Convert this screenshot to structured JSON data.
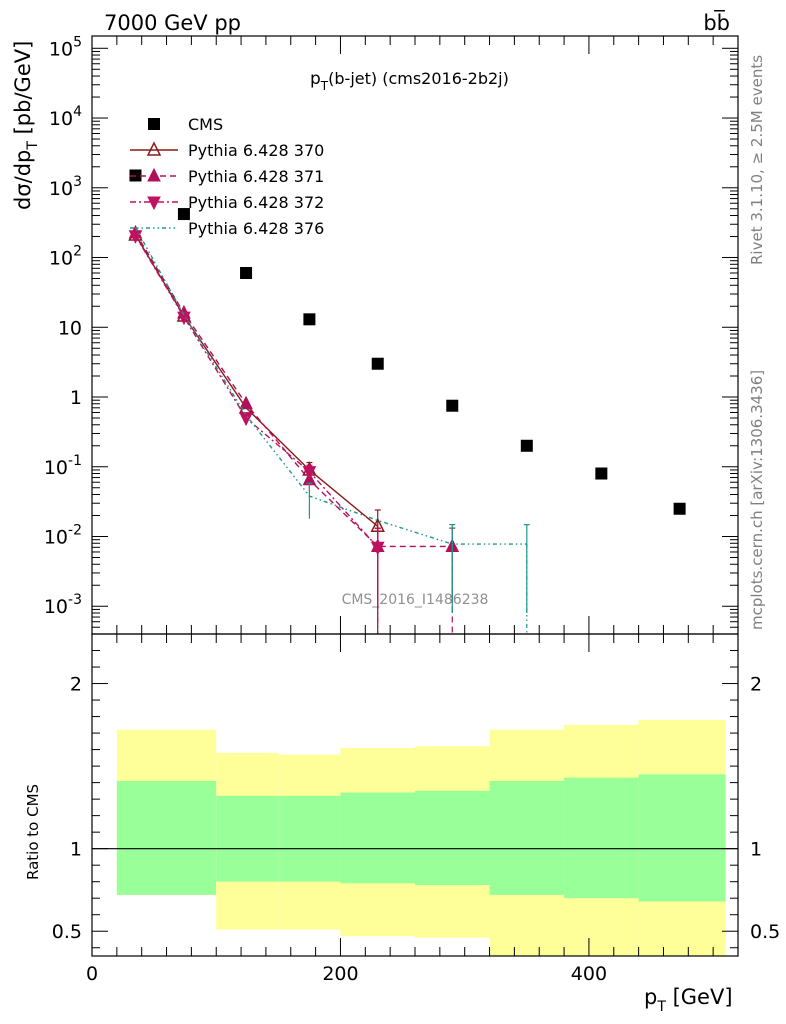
{
  "header": {
    "left": "7000 GeV pp",
    "right": "bb̅"
  },
  "side_labels": {
    "top": "Rivet 3.1.10, ≥ 2.5M events",
    "bottom": "mcplots.cern.ch [arXiv:1306.3436]"
  },
  "watermark": "CMS_2016_I1486238",
  "chart_data": [
    {
      "type": "scatter",
      "title": "p_T(b-jet) (cms2016-2b2j)",
      "title_main": "p",
      "title_sub": "T",
      "title_rest": "(b-jet) (cms2016-2b2j)",
      "ylabel": "dσ/dp_T [pb/GeV]",
      "yscale": "log",
      "xlim": [
        0,
        520
      ],
      "ylim": [
        0.0004,
        150000
      ],
      "y_ticks": [
        {
          "v": 100000,
          "label": "10^5"
        },
        {
          "v": 10000,
          "label": "10^4"
        },
        {
          "v": 1000,
          "label": "10^3"
        },
        {
          "v": 100,
          "label": "10^2"
        },
        {
          "v": 10,
          "label": "10"
        },
        {
          "v": 1,
          "label": "1"
        },
        {
          "v": 0.1,
          "label": "10^-1"
        },
        {
          "v": 0.01,
          "label": "10^-2"
        },
        {
          "v": 0.001,
          "label": "10^-3"
        }
      ],
      "legend_position": "top-left",
      "series": [
        {
          "name": "CMS",
          "color": "#000000",
          "marker": "square",
          "x": [
            35,
            74,
            124,
            175,
            230,
            290,
            350,
            410,
            473
          ],
          "y": [
            1500,
            420,
            60,
            13,
            3.0,
            0.75,
            0.2,
            0.08,
            0.025
          ]
        },
        {
          "name": "Pythia 6.428 370",
          "color": "#8b1a1a",
          "marker": "triangle-up-open",
          "line": "solid",
          "x": [
            35,
            74,
            124,
            175,
            230
          ],
          "y": [
            210,
            14.5,
            0.7,
            0.09,
            0.014
          ],
          "err": [
            0,
            0,
            0,
            0.025,
            0.01
          ]
        },
        {
          "name": "Pythia 6.428 371",
          "color": "#b0105a",
          "marker": "triangle-up",
          "line": "dashed",
          "x": [
            35,
            74,
            124,
            175,
            230,
            290
          ],
          "y": [
            225,
            16,
            0.8,
            0.065,
            0.0072,
            0.0072
          ],
          "err": [
            0,
            0,
            0,
            0.02,
            0.006,
            0.006
          ]
        },
        {
          "name": "Pythia 6.428 372",
          "color": "#c01060",
          "marker": "triangle-down",
          "line": "dashdot",
          "x": [
            35,
            74,
            124,
            175,
            230
          ],
          "y": [
            205,
            14,
            0.5,
            0.085,
            0.007
          ],
          "err": [
            0,
            0,
            0,
            0.02,
            0.006
          ]
        },
        {
          "name": "Pythia 6.428 376",
          "color": "#1a9a8a",
          "marker": "none",
          "line": "dashdotdot",
          "x": [
            35,
            74,
            124,
            175,
            230,
            290,
            350
          ],
          "y": [
            270,
            15,
            0.55,
            0.038,
            0.017,
            0.0078,
            0.0078
          ],
          "err": [
            0,
            0,
            0,
            0.02,
            0,
            0.007,
            0.007
          ]
        }
      ]
    },
    {
      "type": "area",
      "ylabel": "Ratio to CMS",
      "xlabel": "p_T [GeV]",
      "xlabel_main": "p",
      "xlabel_sub": "T",
      "xlabel_rest": " [GeV]",
      "xlim": [
        0,
        520
      ],
      "ylim": [
        0.35,
        2.3
      ],
      "x_ticks": [
        0,
        200,
        400
      ],
      "y_ticks": [
        0.5,
        1,
        2
      ],
      "reference_line": 1,
      "bins": [
        {
          "x0": 20,
          "x1": 100,
          "outer_lo": 0.72,
          "outer_hi": 1.72,
          "inner_lo": 0.72,
          "inner_hi": 1.41
        },
        {
          "x0": 100,
          "x1": 150,
          "outer_lo": 0.51,
          "outer_hi": 1.58,
          "inner_lo": 0.8,
          "inner_hi": 1.32
        },
        {
          "x0": 150,
          "x1": 200,
          "outer_lo": 0.51,
          "outer_hi": 1.57,
          "inner_lo": 0.8,
          "inner_hi": 1.32
        },
        {
          "x0": 200,
          "x1": 260,
          "outer_lo": 0.47,
          "outer_hi": 1.61,
          "inner_lo": 0.79,
          "inner_hi": 1.34
        },
        {
          "x0": 260,
          "x1": 320,
          "outer_lo": 0.46,
          "outer_hi": 1.62,
          "inner_lo": 0.78,
          "inner_hi": 1.35
        },
        {
          "x0": 320,
          "x1": 380,
          "outer_lo": 0.35,
          "outer_hi": 1.72,
          "inner_lo": 0.72,
          "inner_hi": 1.41
        },
        {
          "x0": 380,
          "x1": 440,
          "outer_lo": 0.35,
          "outer_hi": 1.75,
          "inner_lo": 0.7,
          "inner_hi": 1.43
        },
        {
          "x0": 440,
          "x1": 510,
          "outer_lo": 0.35,
          "outer_hi": 1.78,
          "inner_lo": 0.68,
          "inner_hi": 1.45
        }
      ],
      "colors": {
        "outer": "#ffff99",
        "inner": "#99ff99"
      }
    }
  ]
}
